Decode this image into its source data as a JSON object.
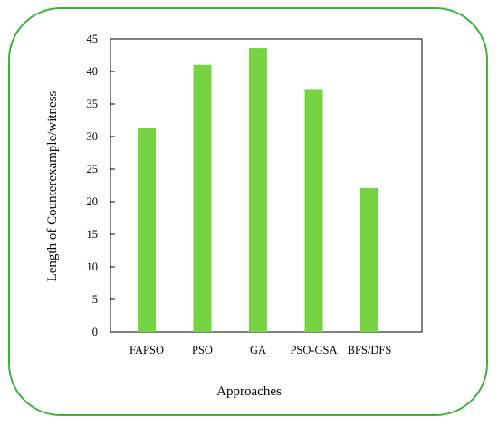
{
  "chart_data": {
    "type": "bar",
    "title": "",
    "xlabel": "Approaches",
    "ylabel": "Length of Counterexample/witness",
    "categories": [
      "FAPSO",
      "PSO",
      "GA",
      "PSO-GSA",
      "BFS/DFS"
    ],
    "values": [
      31.3,
      41.0,
      43.6,
      37.3,
      22.1
    ],
    "ylim": [
      0,
      45
    ],
    "yticks": [
      "0",
      "5",
      "10",
      "15",
      "20",
      "25",
      "30",
      "35",
      "40",
      "45"
    ],
    "grid": false,
    "legend": "none",
    "bar_color": "#76d442",
    "frame_color": "#3cb43c"
  }
}
